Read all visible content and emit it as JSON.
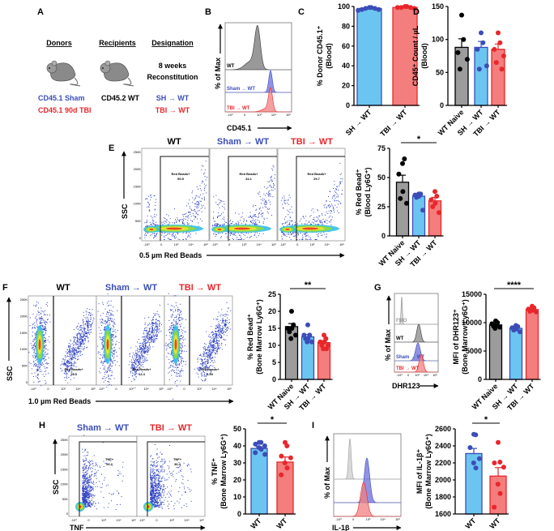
{
  "colors": {
    "blue": "#3b4db8",
    "blue_fill": "#6cc5f0",
    "red": "#e8262b",
    "red_fill": "#f47d7d",
    "grey_fill": "#9c9c9c",
    "black": "#000000"
  },
  "panel_a": {
    "label": "A",
    "headers": [
      "Donors",
      "Recipients",
      "Designation"
    ],
    "donors": [
      "CD45.1 Sham",
      "CD45.1 90d TBI"
    ],
    "recipient": "CD45.2 WT",
    "reconstitution": [
      "8 weeks",
      "Reconstitution"
    ],
    "designations": [
      "SH → WT",
      "TBI → WT"
    ],
    "icons": [
      "mouse-icon",
      "mouse-icon"
    ]
  },
  "panel_b": {
    "label": "B",
    "ylabel": "% of Max",
    "xlabel": "CD45.1",
    "rows": [
      "WT",
      "Sham → WT",
      "TBI → WT"
    ]
  },
  "panel_e": {
    "label": "E",
    "titles": [
      "WT",
      "Sham → WT",
      "TBI → WT"
    ],
    "ylabel": "SSC",
    "xlabel": "0.5 µm Red Beads",
    "gate_name": "Red Beads+",
    "gate_values": [
      "50.5",
      "34.1",
      "29.7"
    ]
  },
  "panel_f": {
    "label": "F",
    "titles": [
      "WT",
      "Sham → WT",
      "TBI → WT"
    ],
    "ylabel": "SSC",
    "xlabel": "1.0 µm Red Beads",
    "gate_name": "Red Beads+",
    "gate_values": [
      "15.5",
      "12.4",
      "8.99"
    ]
  },
  "panel_g": {
    "label": "G",
    "ylabel": "% of Max",
    "xlabel": "DHR123",
    "rows": [
      "FMO",
      "WT",
      "Sham → WT",
      "TBI → WT"
    ]
  },
  "panel_h": {
    "label": "H",
    "titles": [
      "Sham → WT",
      "TBI → WT"
    ],
    "ylabel": "SSC",
    "xlabel": "TNF",
    "gate_name": "TNF+",
    "gate_values": [
      "26.2",
      "36.4"
    ]
  },
  "panel_i": {
    "label": "I",
    "ylabel": "% of Max",
    "xlabel": "IL-1β"
  },
  "flow_axes": {
    "y_ticks": [
      "0",
      "50K",
      "100K",
      "150K",
      "200K",
      "250K"
    ],
    "x_ticks": [
      "-10³",
      "0",
      "10³",
      "10⁴",
      "10⁵"
    ]
  },
  "chart_data": [
    {
      "id": "C",
      "label": "C",
      "type": "bar",
      "categories": [
        "SH → WT",
        "TBI → WT"
      ],
      "values": [
        98,
        99
      ],
      "sem": [
        0.5,
        0.3
      ],
      "points": [
        [
          99,
          99,
          98,
          98,
          97,
          97,
          96
        ],
        [
          100,
          100,
          99,
          99,
          99,
          98
        ]
      ],
      "ylim": [
        0,
        100
      ],
      "ticks": [
        0,
        20,
        40,
        60,
        80,
        100
      ],
      "ylabel": [
        "% Donor CD45.1⁺",
        "(Blood)"
      ],
      "sig": null
    },
    {
      "id": "D",
      "label": "D",
      "type": "bar",
      "categories": [
        "WT Naive",
        "SH → WT",
        "TBI → WT"
      ],
      "values": [
        88,
        88,
        85
      ],
      "sem": [
        13,
        9,
        8
      ],
      "points": [
        [
          137,
          100,
          80,
          70,
          55
        ],
        [
          110,
          95,
          85,
          60,
          55
        ],
        [
          110,
          95,
          85,
          75,
          65,
          55
        ]
      ],
      "ylim": [
        0,
        150
      ],
      "ticks": [
        0,
        50,
        100,
        150
      ],
      "ylabel": [
        "CD45⁺ Count / µL",
        "(Blood)"
      ],
      "sig": null
    },
    {
      "id": "E",
      "type": "bar",
      "categories": [
        "WT Naive",
        "SH → WT",
        "TBI → WT"
      ],
      "values": [
        46,
        34,
        30
      ],
      "sem": [
        6,
        2,
        3
      ],
      "points": [
        [
          62,
          66,
          53,
          38,
          32,
          28
        ],
        [
          36,
          36,
          35,
          34,
          33,
          22
        ],
        [
          38,
          34,
          31,
          28,
          25,
          20
        ]
      ],
      "ylim": [
        0,
        75
      ],
      "ticks": [
        0,
        25,
        50,
        75
      ],
      "ylabel": [
        "% Red Bead⁺",
        "(Blood Ly6G⁺)"
      ],
      "sig": {
        "text": "*",
        "from": 0,
        "to": 2
      }
    },
    {
      "id": "F",
      "type": "bar",
      "categories": [
        "WT Naive",
        "SH → WT",
        "TBI → WT"
      ],
      "values": [
        15.5,
        12.5,
        10.8
      ],
      "sem": [
        0.9,
        0.7,
        0.6
      ],
      "points": [
        [
          20,
          16,
          15,
          15,
          14,
          13,
          12
        ],
        [
          16,
          13,
          13,
          12,
          12,
          11,
          11
        ],
        [
          13,
          12,
          11,
          11,
          10,
          10,
          9,
          9
        ]
      ],
      "ylim": [
        0,
        25
      ],
      "ticks": [
        0,
        5,
        10,
        15,
        20,
        25
      ],
      "ylabel": [
        "% Red Bead⁺",
        "(Bone Marrow Ly6G⁺)"
      ],
      "sig": {
        "text": "**",
        "from": 0,
        "to": 2
      }
    },
    {
      "id": "G",
      "type": "bar",
      "categories": [
        "WT Naive",
        "SH → WT",
        "TBI → WT"
      ],
      "values": [
        9600,
        9000,
        12300
      ],
      "sem": [
        200,
        200,
        150
      ],
      "points": [
        [
          10300,
          10000,
          9800,
          9600,
          9400,
          9200,
          9000
        ],
        [
          9500,
          9300,
          9100,
          8900,
          8700,
          8400
        ],
        [
          12900,
          12600,
          12400,
          12200,
          12000,
          11900
        ]
      ],
      "ylim": [
        0,
        15000
      ],
      "ticks": [
        0,
        5000,
        10000,
        15000
      ],
      "ylabel": [
        "MFI of DHR123⁺",
        "(Bone Marrow Ly6G⁺)"
      ],
      "sig": {
        "text": "****",
        "from": 0,
        "to": 2
      }
    },
    {
      "id": "H",
      "type": "bar",
      "categories": [
        "SH → WT",
        "TBI → WT"
      ],
      "values": [
        38.5,
        30.5
      ],
      "sem": [
        1,
        3
      ],
      "points": [
        [
          42,
          42,
          41,
          40,
          39,
          38,
          36,
          35
        ],
        [
          42,
          40,
          34,
          33,
          30,
          27,
          23
        ]
      ],
      "ylim": [
        0,
        50
      ],
      "ticks": [
        0,
        10,
        20,
        30,
        40,
        50
      ],
      "ylabel": [
        "% TNF⁺",
        "(Bone Marrow Ly6G⁺)"
      ],
      "sig": {
        "text": "*",
        "from": 0,
        "to": 1
      }
    },
    {
      "id": "I",
      "type": "bar",
      "categories": [
        "SH → WT",
        "TBI → WT"
      ],
      "values": [
        2310,
        2045
      ],
      "sem": [
        60,
        100
      ],
      "points": [
        [
          2535,
          2530,
          2380,
          2250,
          2200,
          2140
        ],
        [
          2440,
          2210,
          2200,
          2150,
          1950,
          1840,
          1680
        ]
      ],
      "ylim": [
        1600,
        2600
      ],
      "ticks": [
        1600,
        1800,
        2000,
        2200,
        2400,
        2600
      ],
      "ylabel": [
        "MFI of IL-1β⁺",
        "(Bone Marrow Ly6G⁺)"
      ],
      "sig": {
        "text": "*",
        "from": 0,
        "to": 1
      }
    }
  ]
}
